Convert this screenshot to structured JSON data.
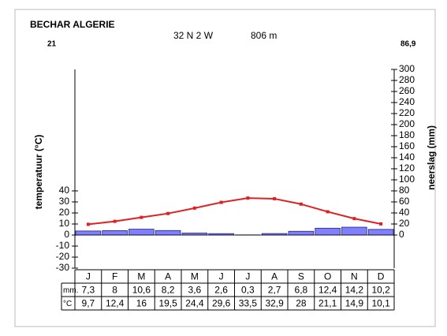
{
  "chart_data": {
    "type": "climate",
    "title": "BECHAR ALGERIE",
    "annotations": [
      "21",
      "32 N  2 W",
      "806 m",
      "86,9"
    ],
    "ylabel": "temperatuur (°C)",
    "y2label": "neerslag (mm)",
    "categories": [
      "J",
      "F",
      "M",
      "A",
      "M",
      "J",
      "J",
      "A",
      "S",
      "O",
      "N",
      "D"
    ],
    "ylim": [
      -30,
      150
    ],
    "yticks": [
      -30,
      -20,
      -10,
      0,
      10,
      20,
      30,
      40
    ],
    "y2lim": [
      -60,
      300
    ],
    "y2ticks": [
      0,
      20,
      40,
      60,
      80,
      100,
      120,
      140,
      160,
      180,
      200,
      220,
      240,
      260,
      280,
      300
    ],
    "series": [
      {
        "name": "mm.",
        "kind": "bar",
        "axis": "y2",
        "color": "#8080ff",
        "values": [
          7.3,
          8,
          10.6,
          8.2,
          3.6,
          2.6,
          0.3,
          2.7,
          6.8,
          12.4,
          14.2,
          10.2
        ],
        "value_labels": [
          "7,3",
          "8",
          "10,6",
          "8,2",
          "3,6",
          "2,6",
          "0,3",
          "2,7",
          "6,8",
          "12,4",
          "14,2",
          "10,2"
        ]
      },
      {
        "name": "°C",
        "kind": "line",
        "color": "#e02020",
        "values": [
          9.7,
          12.4,
          16,
          19.5,
          24.4,
          29.6,
          33.5,
          32.9,
          28,
          21.1,
          14.9,
          10.1
        ],
        "value_labels": [
          "9,7",
          "12,4",
          "16",
          "19,5",
          "24,4",
          "29,6",
          "33,5",
          "32,9",
          "28",
          "21,1",
          "14,9",
          "10,1"
        ]
      }
    ]
  }
}
